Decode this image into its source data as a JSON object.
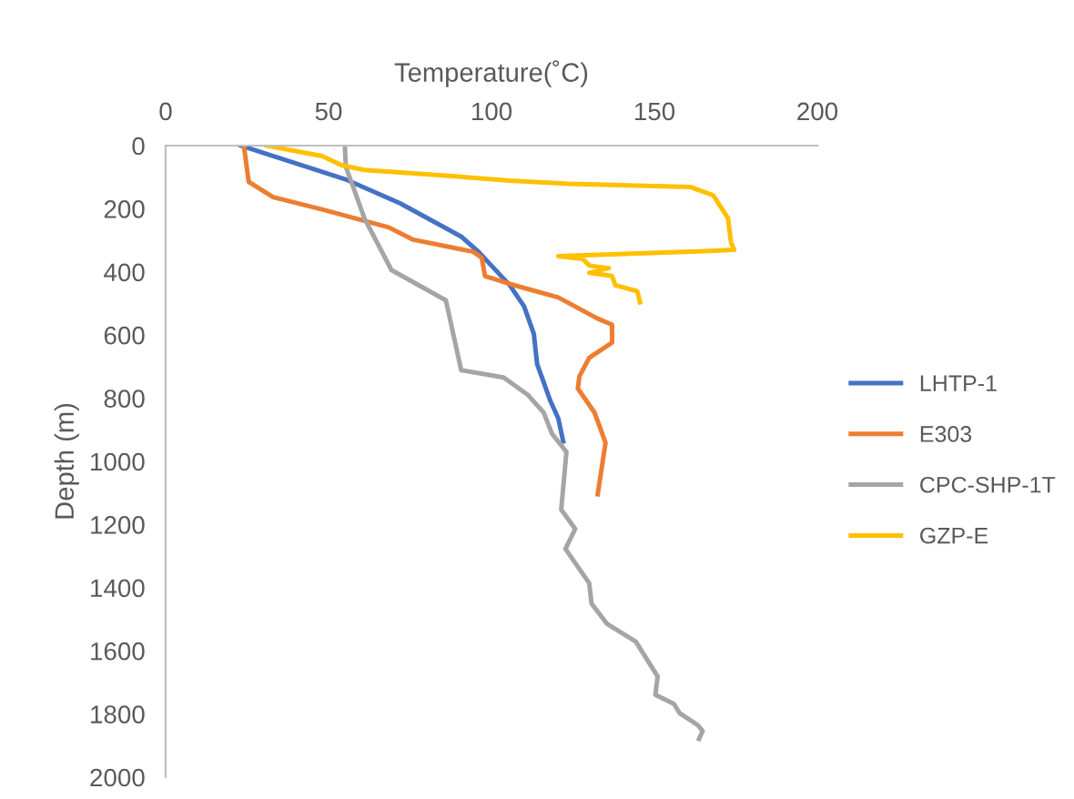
{
  "chart_data": {
    "type": "line",
    "xlabel": "Temperature(˚C)",
    "ylabel": "Depth (m)",
    "xlim": [
      0,
      200
    ],
    "xticks": [
      0,
      50,
      100,
      150,
      200
    ],
    "ylim": [
      2000,
      0
    ],
    "yticks": [
      0,
      200,
      400,
      600,
      800,
      1000,
      1200,
      1400,
      1600,
      1800,
      2000
    ],
    "grid": false,
    "legend": "right",
    "marker": "none",
    "line_style": "solid",
    "series": [
      {
        "name": "LHTP-1",
        "color": "#4472c4",
        "x": [
          23,
          55,
          72,
          90.7,
          96,
          105.6,
          110,
          113,
          114,
          116,
          118,
          120.5,
          122
        ],
        "values": [
          0,
          106,
          183,
          288,
          336,
          442,
          509,
          596,
          692,
          749,
          807,
          864,
          937
        ]
      },
      {
        "name": "E303",
        "color": "#ed7d31",
        "x": [
          24,
          25.5,
          33,
          48,
          68.5,
          76,
          94.4,
          97,
          98,
          105.6,
          120.5,
          132.6,
          137,
          137,
          130,
          127,
          126.5,
          131.6,
          135,
          132.6
        ],
        "values": [
          0,
          115,
          163,
          202,
          259,
          298,
          336,
          355,
          413,
          438,
          481,
          548,
          567,
          624,
          672,
          730,
          769,
          845,
          941,
          1104
        ]
      },
      {
        "name": "CPC-SHP-1T",
        "color": "#a5a5a5",
        "x": [
          55,
          55.3,
          58,
          61,
          69.3,
          86,
          90.7,
          103.7,
          111,
          116,
          118.6,
          123,
          121.4,
          125.7,
          122.7,
          130,
          130.7,
          135.4,
          144.3,
          151,
          150.3,
          156,
          157.7,
          163.3,
          164.8,
          163.7
        ],
        "values": [
          0,
          67,
          144,
          230,
          394,
          490,
          711,
          734,
          788,
          845,
          913,
          970,
          1153,
          1214,
          1277,
          1386,
          1450,
          1514,
          1571,
          1681,
          1739,
          1768,
          1797,
          1835,
          1854,
          1879
        ]
      },
      {
        "name": "GZP-E",
        "color": "#ffc000",
        "x": [
          31,
          48,
          54,
          61,
          87,
          105.6,
          124,
          161,
          168,
          172.6,
          173.5,
          174.5,
          161,
          120.5,
          128,
          130,
          136,
          130,
          137,
          138,
          144.7,
          145.6
        ],
        "values": [
          0,
          33,
          62,
          77,
          96,
          111,
          121,
          131,
          157,
          230,
          307,
          330,
          336,
          350,
          359,
          380,
          388,
          403,
          413,
          442,
          461,
          496
        ]
      }
    ]
  }
}
